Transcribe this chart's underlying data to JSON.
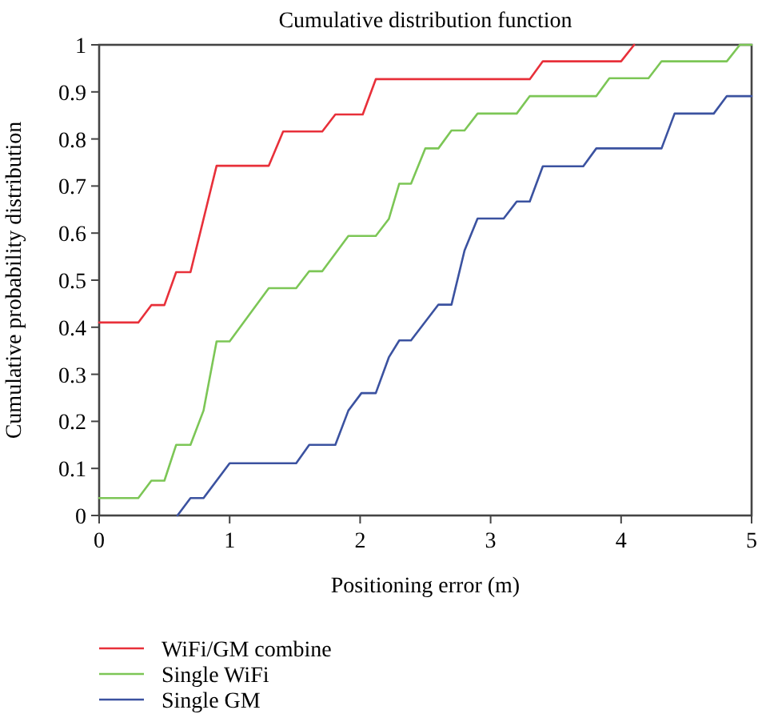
{
  "chart_data": {
    "type": "line",
    "title": "Cumulative distribution function",
    "xlabel": "Positioning error (m)",
    "ylabel": "Cumulative probability distribution",
    "xlim": [
      0,
      5
    ],
    "ylim": [
      0,
      1
    ],
    "xticks": [
      0,
      1,
      2,
      3,
      4,
      5
    ],
    "yticks": [
      0,
      0.1,
      0.2,
      0.3,
      0.4,
      0.5,
      0.6,
      0.7,
      0.8,
      0.9,
      1
    ],
    "grid": false,
    "legend": "bottom",
    "series": [
      {
        "name": "WiFi/GM combine",
        "color": "#e8303a",
        "x": [
          0,
          0.3,
          0.4,
          0.5,
          0.59,
          0.7,
          0.9,
          1.3,
          1.41,
          1.71,
          1.81,
          2.02,
          2.12,
          3.3,
          3.4,
          4.0,
          4.1
        ],
        "values": [
          0.41,
          0.41,
          0.447,
          0.447,
          0.517,
          0.517,
          0.743,
          0.743,
          0.816,
          0.816,
          0.852,
          0.852,
          0.927,
          0.927,
          0.965,
          0.965,
          1.0
        ]
      },
      {
        "name": "Single WiFi",
        "color": "#7cc656",
        "x": [
          0,
          0.3,
          0.4,
          0.5,
          0.59,
          0.7,
          0.8,
          0.9,
          1.0,
          1.3,
          1.51,
          1.61,
          1.71,
          1.91,
          2.12,
          2.22,
          2.3,
          2.39,
          2.5,
          2.6,
          2.7,
          2.8,
          2.9,
          3.2,
          3.3,
          3.81,
          3.91,
          4.21,
          4.31,
          4.81,
          4.91,
          5.0
        ],
        "values": [
          0.037,
          0.037,
          0.074,
          0.074,
          0.15,
          0.15,
          0.223,
          0.37,
          0.37,
          0.483,
          0.483,
          0.519,
          0.519,
          0.594,
          0.594,
          0.63,
          0.705,
          0.705,
          0.78,
          0.78,
          0.818,
          0.818,
          0.854,
          0.854,
          0.891,
          0.891,
          0.929,
          0.929,
          0.965,
          0.965,
          1.0,
          1.0
        ]
      },
      {
        "name": "Single GM",
        "color": "#3b52a0",
        "x": [
          0.6,
          0.7,
          0.8,
          1.0,
          1.51,
          1.61,
          1.81,
          1.91,
          2.01,
          2.12,
          2.22,
          2.3,
          2.39,
          2.6,
          2.7,
          2.8,
          2.9,
          3.1,
          3.2,
          3.3,
          3.4,
          3.71,
          3.81,
          4.31,
          4.41,
          4.71,
          4.81,
          5.0
        ],
        "values": [
          0,
          0.037,
          0.037,
          0.111,
          0.111,
          0.15,
          0.15,
          0.223,
          0.26,
          0.26,
          0.336,
          0.372,
          0.372,
          0.448,
          0.448,
          0.563,
          0.631,
          0.631,
          0.667,
          0.667,
          0.742,
          0.742,
          0.78,
          0.78,
          0.854,
          0.854,
          0.891,
          0.891
        ]
      }
    ]
  }
}
